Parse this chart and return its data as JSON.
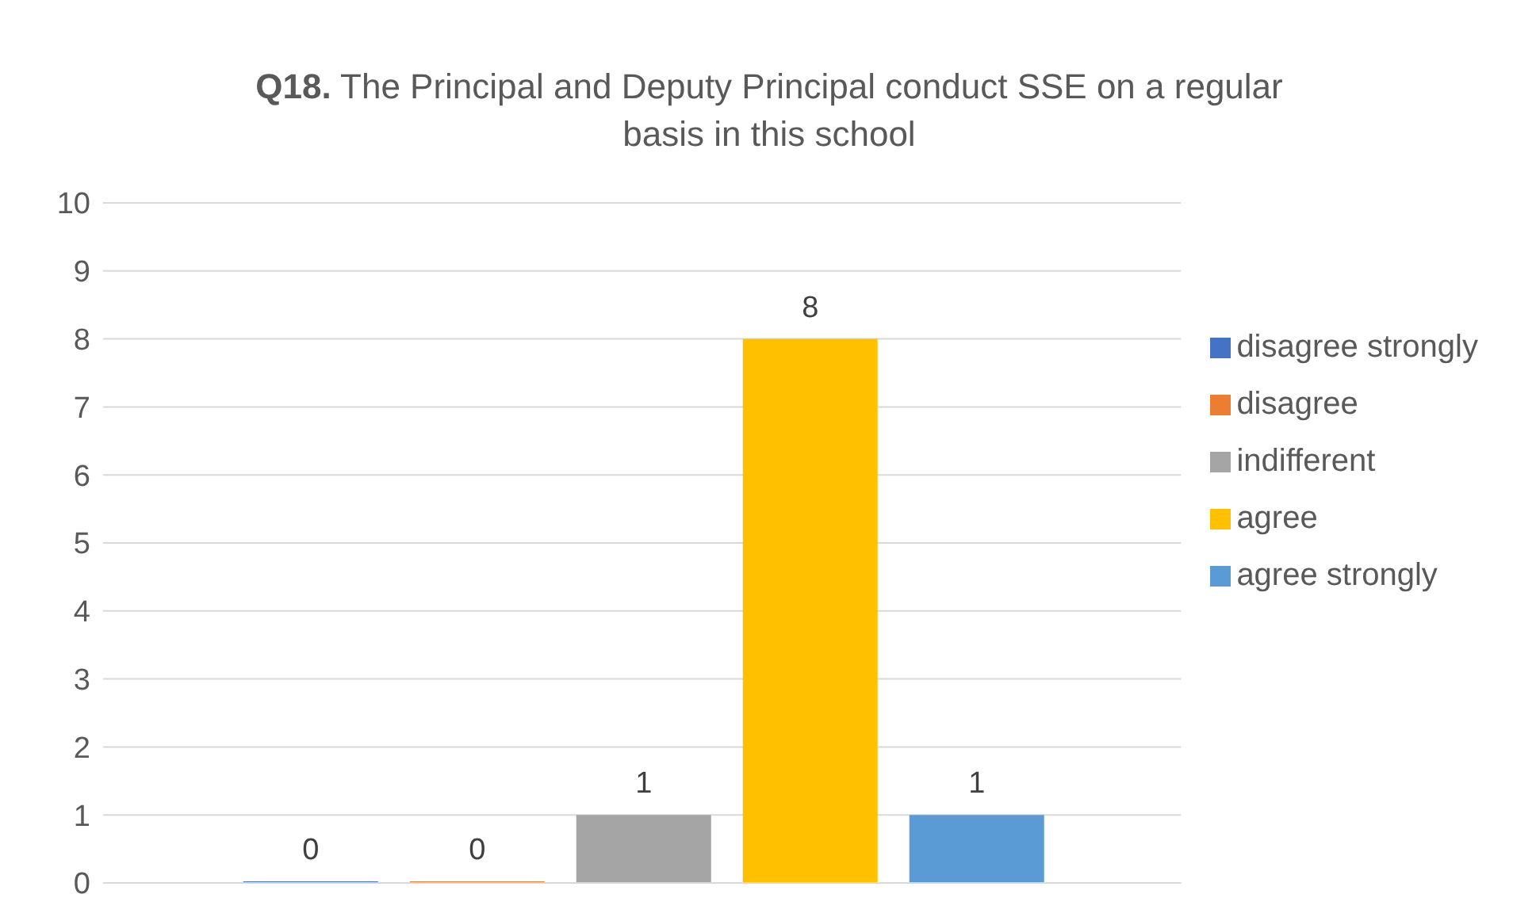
{
  "chart_data": {
    "type": "bar",
    "title": "Q18. The Principal and Deputy Principal conduct SSE on a regular basis in this school",
    "categories": [
      null
    ],
    "series": [
      {
        "name": "disagree strongly",
        "color": "#4472c4",
        "values": [
          0
        ]
      },
      {
        "name": "disagree",
        "color": "#ed7d31",
        "values": [
          0
        ]
      },
      {
        "name": "indifferent",
        "color": "#a5a5a5",
        "values": [
          1
        ]
      },
      {
        "name": "agree",
        "color": "#ffc000",
        "values": [
          8
        ]
      },
      {
        "name": "agree strongly",
        "color": "#5b9bd5",
        "values": [
          1
        ]
      }
    ],
    "ylim": [
      0,
      10
    ],
    "yticks": [
      0,
      1,
      2,
      3,
      4,
      5,
      6,
      7,
      8,
      9,
      10
    ],
    "grid": "y",
    "legend": "right",
    "data_labels": true
  }
}
